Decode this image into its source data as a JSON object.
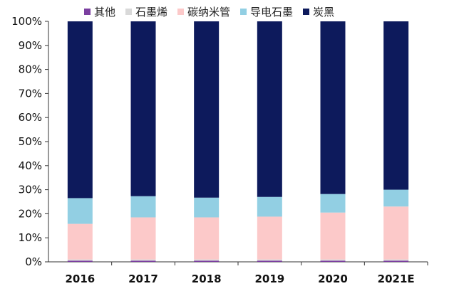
{
  "chart_data": {
    "type": "bar",
    "stacked": true,
    "categories": [
      "2016",
      "2017",
      "2018",
      "2019",
      "2020",
      "2021E"
    ],
    "series": [
      {
        "name": "其他",
        "color": "#7b3fa0",
        "values": [
          0.5,
          0.5,
          0.5,
          0.5,
          0.5,
          0.5
        ]
      },
      {
        "name": "石墨烯",
        "color": "#d9d9d9",
        "values": [
          0.5,
          0.5,
          0.5,
          0.5,
          0.5,
          0.5
        ]
      },
      {
        "name": "碳纳米管",
        "color": "#fcc9c9",
        "values": [
          14.8,
          17.5,
          17.5,
          17.8,
          19.5,
          22.0
        ]
      },
      {
        "name": "导电石墨",
        "color": "#92cfe3",
        "values": [
          10.7,
          8.8,
          8.2,
          8.2,
          7.7,
          7.0
        ]
      },
      {
        "name": "炭黑",
        "color": "#0d1a5c",
        "values": [
          73.5,
          72.7,
          73.3,
          73.0,
          71.8,
          70.0
        ]
      }
    ],
    "yticks": [
      "0%",
      "10%",
      "20%",
      "30%",
      "40%",
      "50%",
      "60%",
      "70%",
      "80%",
      "90%",
      "100%"
    ],
    "ylim": [
      0,
      100
    ],
    "legend_position": "top",
    "grid": false
  }
}
